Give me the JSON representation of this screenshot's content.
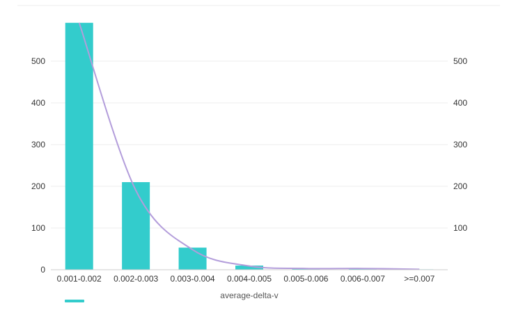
{
  "chart_data": {
    "type": "bar",
    "categories": [
      "0.001-0.002",
      "0.002-0.003",
      "0.003-0.004",
      "0.004-0.005",
      "0.005-0.006",
      "0.006-0.007",
      ">=0.007"
    ],
    "series": [
      {
        "type": "bar",
        "values": [
          592,
          210,
          53,
          10,
          3,
          3,
          1
        ]
      },
      {
        "type": "line",
        "smooth": true,
        "values": [
          592,
          190,
          48,
          9,
          3,
          3,
          1
        ]
      }
    ],
    "xlabel": "average-delta-v",
    "ylabel": "",
    "ylim": [
      0,
      600
    ],
    "yticks": [
      0,
      100,
      200,
      300,
      400,
      500
    ],
    "right_yticks": [
      100,
      200,
      300,
      400,
      500
    ],
    "grid": true,
    "legend": "bottom-left",
    "colors": {
      "bar": "#33cccc",
      "line": "#b39ddb",
      "grid": "#eeeeee",
      "axis": "#cccccc"
    }
  }
}
